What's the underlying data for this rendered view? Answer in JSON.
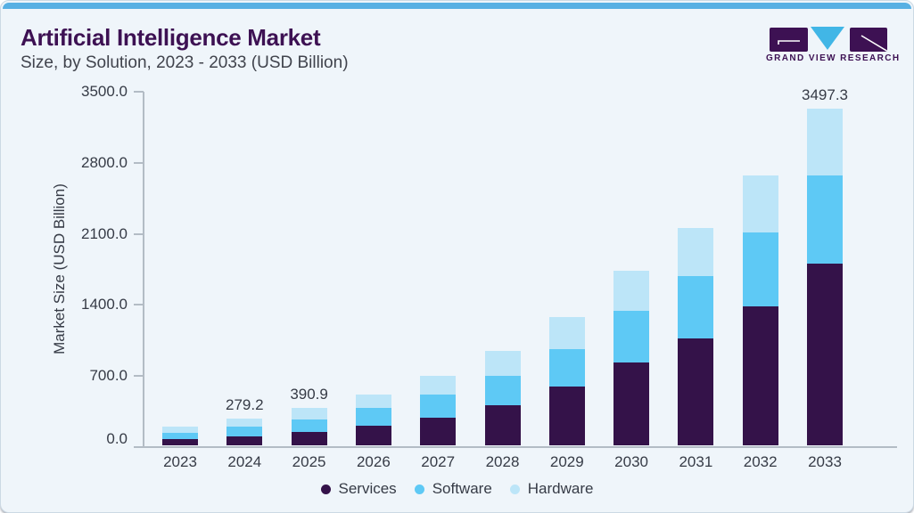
{
  "header": {
    "title": "Artificial Intelligence Market",
    "subtitle": "Size, by Solution, 2023 - 2033 (USD Billion)"
  },
  "logo": {
    "text": "GRAND VIEW RESEARCH",
    "purple": "#3d1153",
    "blue": "#41b6e6"
  },
  "colors": {
    "card_background": "#eff5fa",
    "top_accent": "#58b0e3",
    "title_text": "#3d1153",
    "subtitle_text": "#40434c",
    "axis_text": "#363b46",
    "axis_line": "#b3bcc5"
  },
  "chart_data": {
    "type": "bar",
    "stacked": true,
    "title": "Artificial Intelligence Market Size, by Solution, 2023 - 2033 (USD Billion)",
    "ylabel": "Market Size (USD Billion)",
    "xlabel": "",
    "ylim": [
      0,
      3500
    ],
    "ytick_step": 700,
    "ytick_labels": [
      "0.0",
      "700.0",
      "1400.0",
      "2100.0",
      "2800.0",
      "3500.0"
    ],
    "grid": false,
    "legend_position": "bottom",
    "categories": [
      "2023",
      "2024",
      "2025",
      "2026",
      "2027",
      "2028",
      "2029",
      "2030",
      "2031",
      "2032",
      "2033"
    ],
    "series": [
      {
        "name": "Services",
        "color": "#341249",
        "values": [
          62.0,
          93.0,
          138.0,
          200.0,
          292.0,
          418.0,
          613.0,
          859.0,
          1114.0,
          1449.0,
          1893.0
        ]
      },
      {
        "name": "Software",
        "color": "#5ec9f5",
        "values": [
          71.0,
          99.2,
          127.0,
          187.0,
          235.0,
          303.0,
          392.0,
          541.0,
          645.0,
          764.0,
          910.0
        ]
      },
      {
        "name": "Hardware",
        "color": "#bce5f8",
        "values": [
          63.6,
          87.0,
          125.9,
          144.2,
          195.0,
          260.1,
          328.4,
          411.8,
          496.8,
          595.7,
          694.3
        ]
      }
    ],
    "totals": [
      196.6,
      279.2,
      390.9,
      531.2,
      722.0,
      981.1,
      1333.4,
      1811.8,
      2255.8,
      2808.7,
      3497.3
    ],
    "visible_value_labels": {
      "2024": "279.2",
      "2025": "390.9",
      "2033": "3497.3"
    }
  }
}
